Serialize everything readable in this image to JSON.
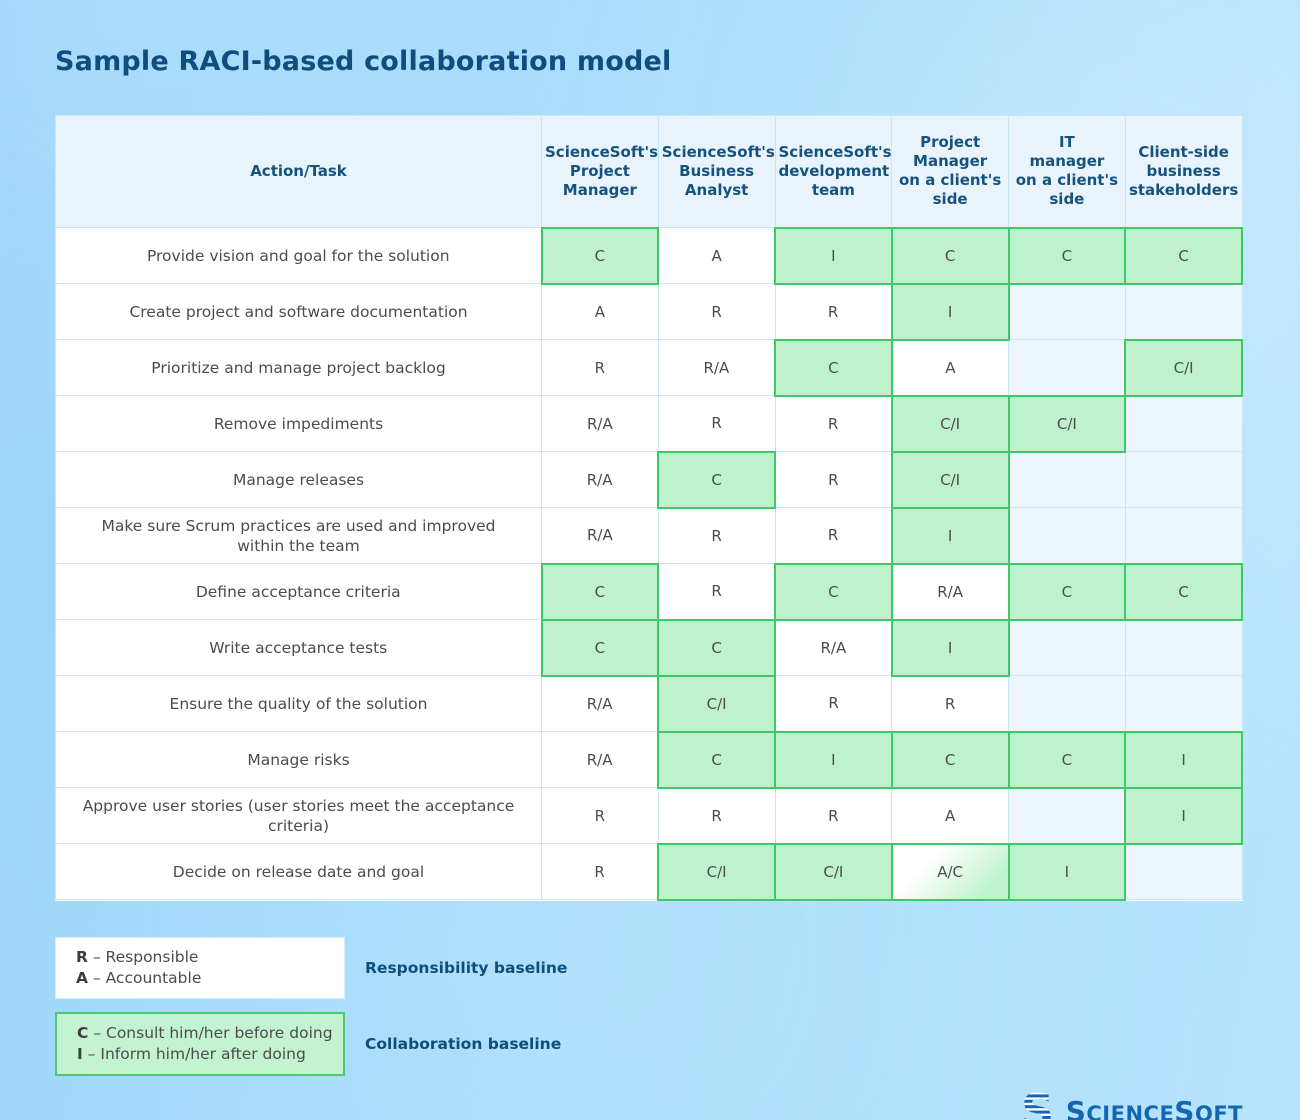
{
  "page": {
    "title": "Sample RACI-based collaboration model"
  },
  "table": {
    "task_header": "Action/Task",
    "columns": [
      {
        "lines": [
          "ScienceSoft's",
          "Project",
          "Manager"
        ]
      },
      {
        "lines": [
          "ScienceSoft's",
          "Business",
          "Analyst"
        ]
      },
      {
        "lines": [
          "ScienceSoft's",
          "development",
          "team"
        ]
      },
      {
        "lines": [
          "Project",
          "Manager",
          "on a client's",
          "side"
        ]
      },
      {
        "lines": [
          "IT",
          "manager",
          "on a client's",
          "side"
        ]
      },
      {
        "lines": [
          "Client-side",
          "business",
          "stakeholders"
        ]
      }
    ],
    "rows": [
      {
        "task": "Provide vision and goal for the solution",
        "cells": [
          {
            "v": "C",
            "hl": true
          },
          {
            "v": "A"
          },
          {
            "v": "I",
            "hl": true
          },
          {
            "v": "C",
            "hl": true
          },
          {
            "v": "C",
            "hl": true
          },
          {
            "v": "C",
            "hl": true
          }
        ]
      },
      {
        "task": "Create project and software documentation",
        "cells": [
          {
            "v": "A"
          },
          {
            "v": "R"
          },
          {
            "v": "R"
          },
          {
            "v": "I",
            "hl": true
          },
          {
            "v": ""
          },
          {
            "v": ""
          }
        ]
      },
      {
        "task": "Prioritize and manage project backlog",
        "cells": [
          {
            "v": "R"
          },
          {
            "v": "R/A"
          },
          {
            "v": "C",
            "hl": true
          },
          {
            "v": "A"
          },
          {
            "v": ""
          },
          {
            "v": "C/I",
            "hl": true
          }
        ]
      },
      {
        "task": "Remove impediments",
        "cells": [
          {
            "v": "R/A"
          },
          {
            "v": "R"
          },
          {
            "v": "R"
          },
          {
            "v": "C/I",
            "hl": true
          },
          {
            "v": "C/I",
            "hl": true
          },
          {
            "v": ""
          }
        ]
      },
      {
        "task": "Manage releases",
        "cells": [
          {
            "v": "R/A"
          },
          {
            "v": "C",
            "hl": true
          },
          {
            "v": "R"
          },
          {
            "v": "C/I",
            "hl": true
          },
          {
            "v": ""
          },
          {
            "v": ""
          }
        ]
      },
      {
        "task": "Make sure Scrum practices are used and improved within the team",
        "cells": [
          {
            "v": "R/A"
          },
          {
            "v": "R"
          },
          {
            "v": "R"
          },
          {
            "v": "I",
            "hl": true
          },
          {
            "v": ""
          },
          {
            "v": ""
          }
        ]
      },
      {
        "task": "Define acceptance criteria",
        "cells": [
          {
            "v": "C",
            "hl": true
          },
          {
            "v": "R"
          },
          {
            "v": "C",
            "hl": true
          },
          {
            "v": "R/A"
          },
          {
            "v": "C",
            "hl": true
          },
          {
            "v": "C",
            "hl": true
          }
        ]
      },
      {
        "task": "Write acceptance tests",
        "cells": [
          {
            "v": "C",
            "hl": true
          },
          {
            "v": "C",
            "hl": true
          },
          {
            "v": "R/A"
          },
          {
            "v": "I",
            "hl": true
          },
          {
            "v": ""
          },
          {
            "v": ""
          }
        ]
      },
      {
        "task": "Ensure the quality of the solution",
        "cells": [
          {
            "v": "R/A"
          },
          {
            "v": "C/I",
            "hl": true
          },
          {
            "v": "R"
          },
          {
            "v": "R"
          },
          {
            "v": ""
          },
          {
            "v": ""
          }
        ]
      },
      {
        "task": "Manage risks",
        "cells": [
          {
            "v": "R/A"
          },
          {
            "v": "C",
            "hl": true
          },
          {
            "v": "I",
            "hl": true
          },
          {
            "v": "C",
            "hl": true
          },
          {
            "v": "C",
            "hl": true
          },
          {
            "v": "I",
            "hl": true
          }
        ]
      },
      {
        "task": "Approve user stories (user stories meet the acceptance criteria)",
        "cells": [
          {
            "v": "R"
          },
          {
            "v": "R"
          },
          {
            "v": "R"
          },
          {
            "v": "A"
          },
          {
            "v": ""
          },
          {
            "v": "I",
            "hl": true
          }
        ]
      },
      {
        "task": "Decide on release date and goal",
        "cells": [
          {
            "v": "R"
          },
          {
            "v": "C/I",
            "hl": true
          },
          {
            "v": "C/I",
            "hl": true
          },
          {
            "v": "A/C",
            "hl": true,
            "grad": true
          },
          {
            "v": "I",
            "hl": true
          },
          {
            "v": ""
          }
        ]
      }
    ]
  },
  "legend": {
    "responsibility": {
      "items": [
        {
          "key": "R",
          "label": " – Responsible"
        },
        {
          "key": "A",
          "label": " – Accountable"
        }
      ],
      "caption": "Responsibility baseline"
    },
    "collaboration": {
      "items": [
        {
          "key": "C",
          "label": " – Consult him/her before doing"
        },
        {
          "key": "I",
          "label": " – Inform him/her after doing"
        }
      ],
      "caption": "Collaboration baseline"
    }
  },
  "logo": {
    "s1": "S",
    "rest1": "cience",
    "s2": "S",
    "rest2": "oft"
  },
  "colors": {
    "highlight_fill": "#bdf2cc",
    "highlight_border": "#3ec868",
    "empty_cell": "#edf6fd",
    "header_bg": "#e9f3fc",
    "accent_text": "#0d4f7a",
    "brand_blue": "#1566b2"
  }
}
